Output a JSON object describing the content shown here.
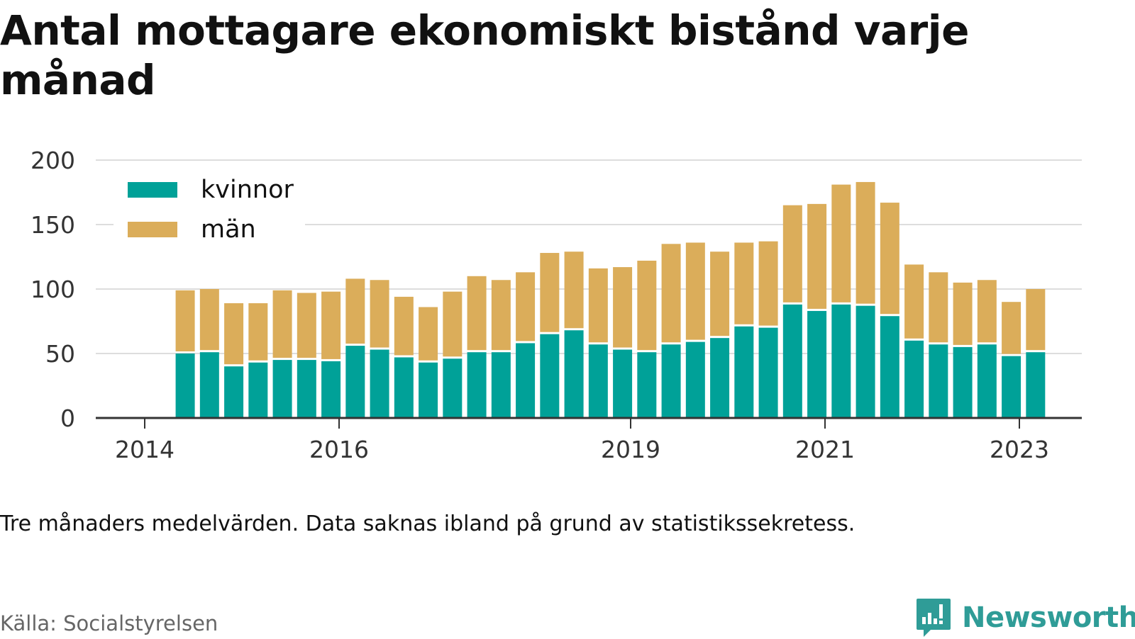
{
  "title": "Antal mottagare ekonomiskt bistånd varje månad",
  "note": "Tre månaders medelvärden. Data saknas ibland på grund av statistikssekretess.",
  "source": "Källa: Socialstyrelsen",
  "brand": "Newsworthy",
  "colors": {
    "kvinnor": "#00a198",
    "man": "#dbad5a",
    "brand": "#2f9c97",
    "grid": "#dddddd",
    "axis": "#333333"
  },
  "chart_data": {
    "type": "bar",
    "stacked": true,
    "ylim": [
      0,
      200
    ],
    "yticks": [
      0,
      50,
      100,
      150,
      200
    ],
    "xticks": [
      "2014",
      "2016",
      "2019",
      "2021",
      "2023"
    ],
    "grid": true,
    "legend_position": "top-left",
    "series": [
      {
        "name": "kvinnor",
        "color": "#00a198",
        "values": [
          50,
          51,
          40,
          43,
          45,
          45,
          44,
          56,
          53,
          47,
          43,
          46,
          51,
          51,
          58,
          65,
          68,
          57,
          53,
          51,
          57,
          59,
          62,
          71,
          70,
          88,
          83,
          88,
          87,
          79,
          60,
          57,
          55,
          57,
          48,
          51
        ]
      },
      {
        "name": "män",
        "color": "#dbad5a",
        "values": [
          49,
          49,
          49,
          46,
          54,
          52,
          54,
          52,
          54,
          47,
          43,
          52,
          59,
          56,
          55,
          63,
          61,
          59,
          64,
          71,
          78,
          77,
          67,
          65,
          67,
          77,
          83,
          93,
          96,
          88,
          59,
          56,
          50,
          50,
          42,
          49
        ]
      }
    ],
    "bar_dates": [
      "2014-06",
      "2014-09",
      "2014-12",
      "2015-03",
      "2015-06",
      "2015-09",
      "2015-12",
      "2016-03",
      "2016-06",
      "2016-09",
      "2016-12",
      "2017-03",
      "2017-06",
      "2017-09",
      "2017-12",
      "2018-03",
      "2018-06",
      "2018-09",
      "2018-12",
      "2019-03",
      "2019-06",
      "2019-09",
      "2019-12",
      "2020-03",
      "2020-06",
      "2020-09",
      "2020-12",
      "2021-03",
      "2021-06",
      "2021-09",
      "2021-12",
      "2022-03",
      "2022-06",
      "2022-09",
      "2022-12",
      "2023-03"
    ]
  }
}
